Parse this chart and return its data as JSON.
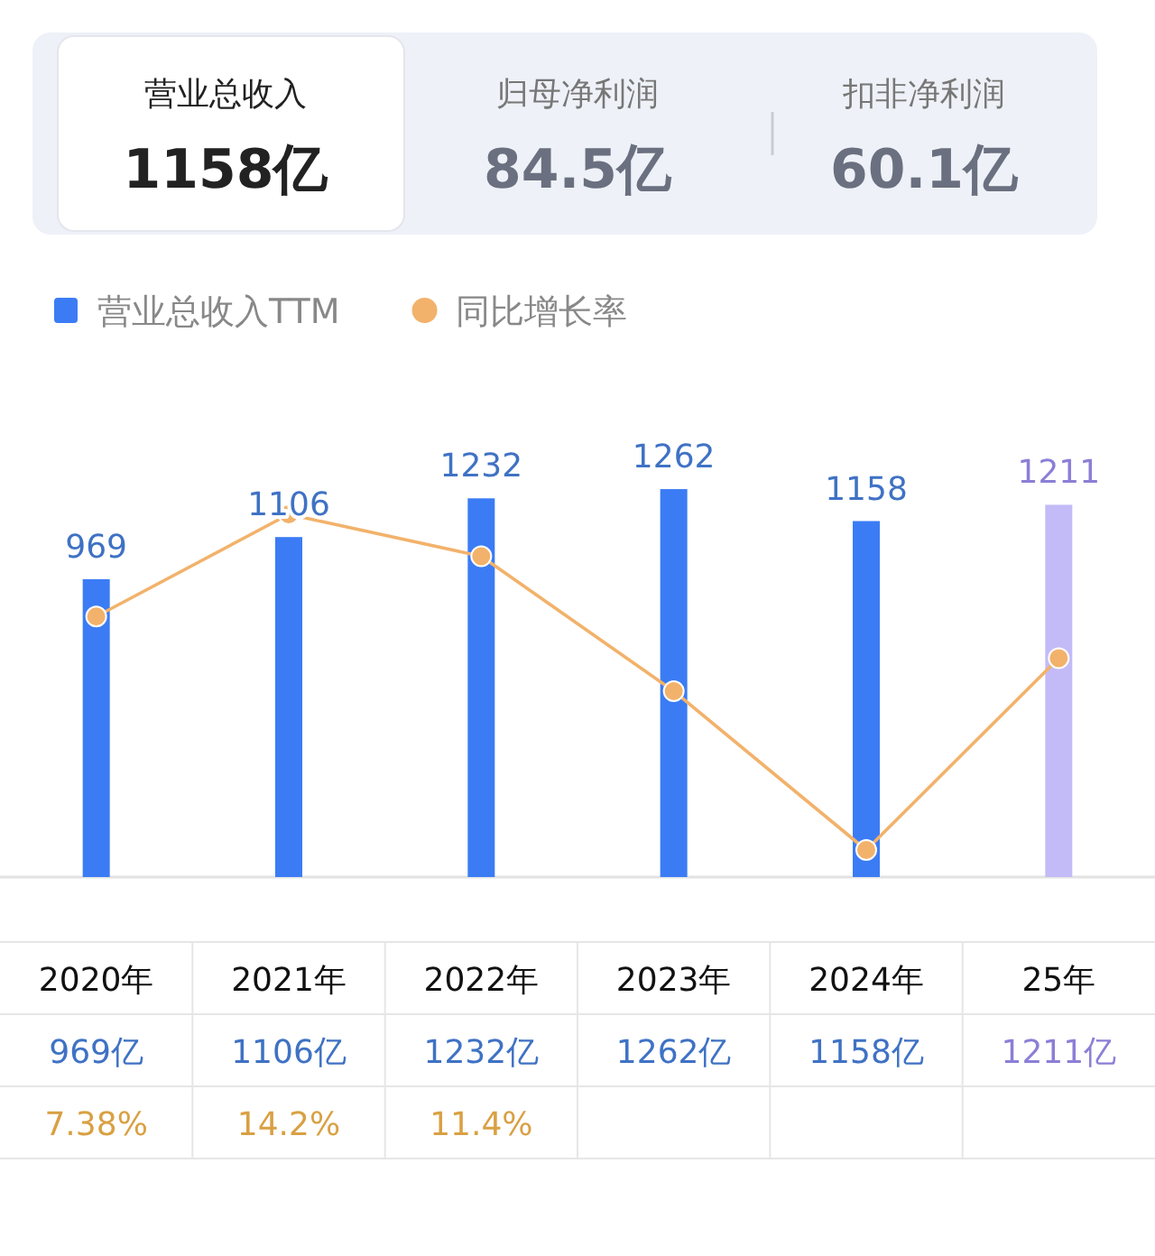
{
  "chart_data": [
    {
      "type": "other",
      "annotations": [
        "营业总收入",
        "1158亿",
        "归母净利润",
        "84.5亿",
        "扣非净利润",
        "60.1亿"
      ]
    },
    {
      "type": "bar",
      "categories": [
        "2020年",
        "2021年",
        "2022年",
        "2023年",
        "2024年",
        "25年"
      ],
      "series": [
        {
          "name": "营业总收入TTM",
          "type": "bar",
          "color": "#3b7cf5",
          "colors": [
            "#3b7cf5",
            "#3b7cf5",
            "#3b7cf5",
            "#3b7cf5",
            "#3b7cf5",
            "#c3bbf7"
          ],
          "values": [
            969,
            1106,
            1232,
            1262,
            1158,
            1211
          ],
          "value_labels": [
            "969",
            "1106",
            "1232",
            "1262",
            "1158",
            "1211"
          ]
        },
        {
          "name": "同比增长率",
          "type": "line",
          "axis": "y2",
          "color": "#f2b26b",
          "values": [
            7.38,
            14.2,
            11.4,
            2.4,
            -8.2,
            4.6
          ],
          "value_labels": [
            "7.38%",
            "14.2%",
            "11.4%",
            null,
            null,
            null
          ]
        }
      ],
      "annotations": [
        "969亿",
        "1106亿",
        "1232亿",
        "1262亿",
        "1158亿",
        "1211亿"
      ],
      "legend": "top left",
      "marker": "circle",
      "tick_labels": "x"
    }
  ]
}
